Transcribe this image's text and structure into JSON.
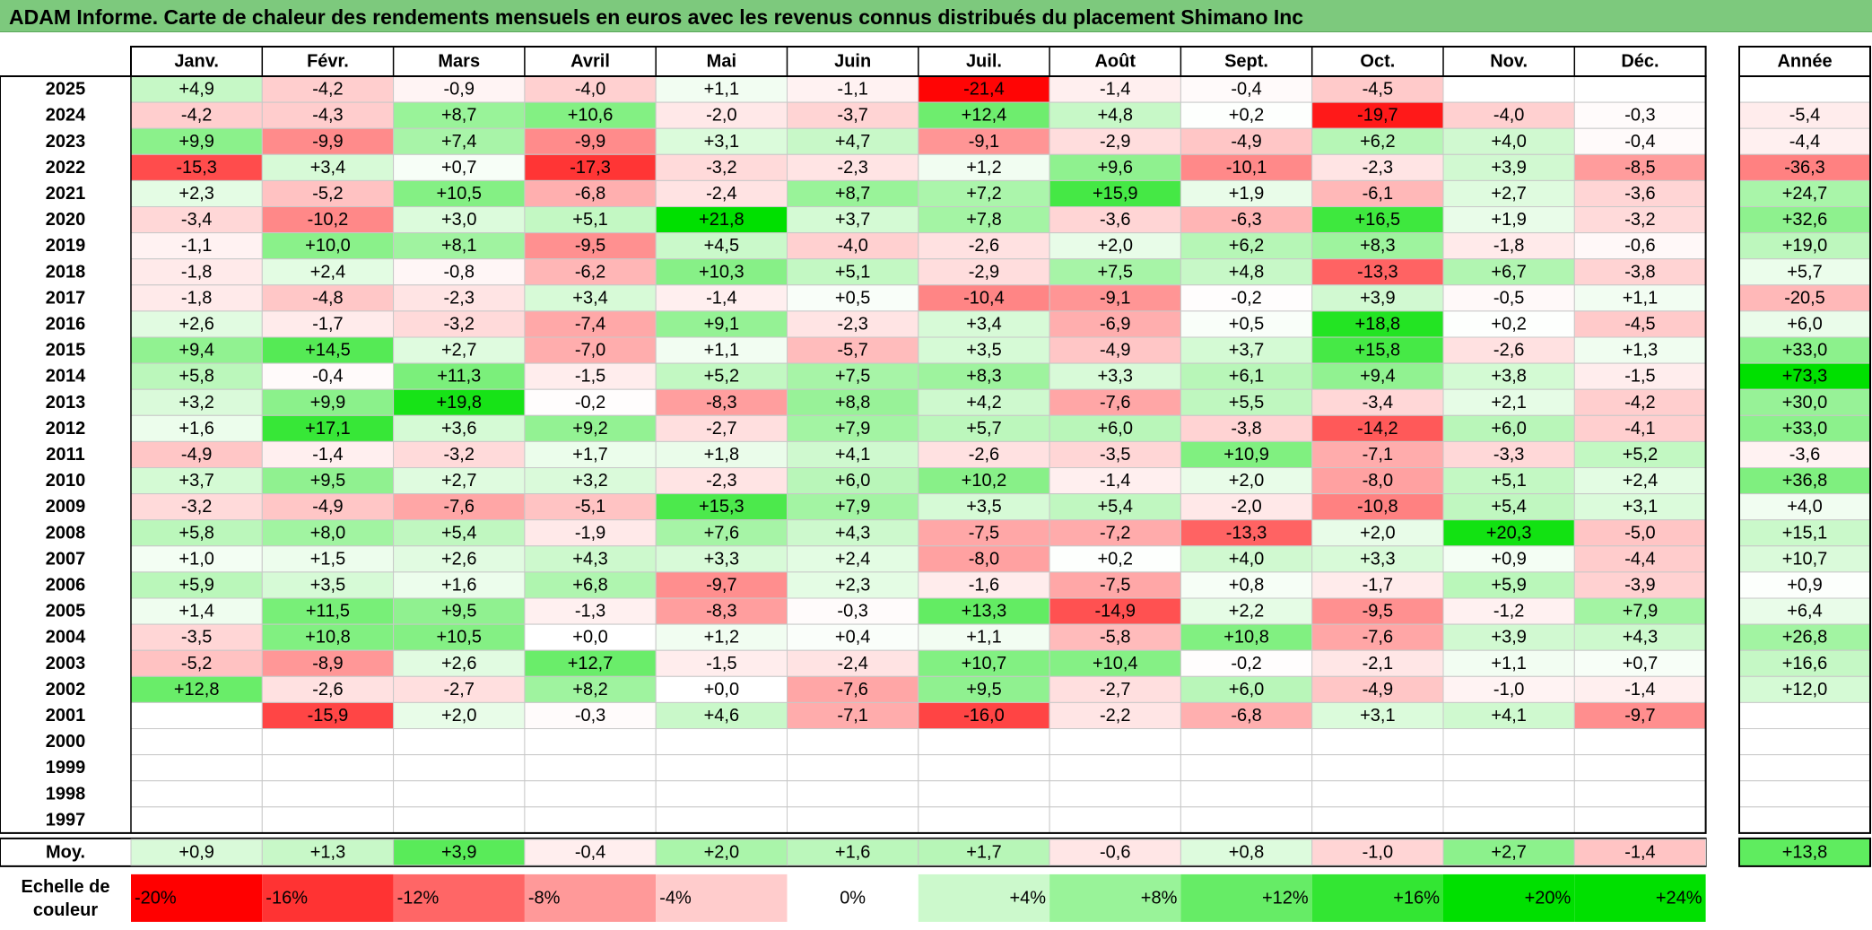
{
  "title": "ADAM Informe. Carte de chaleur des rendements mensuels en euros avec les revenus connus distribués du placement Shimano Inc",
  "chart_data": {
    "type": "heatmap",
    "months": [
      "Janv.",
      "Févr.",
      "Mars",
      "Avril",
      "Mai",
      "Juin",
      "Juil.",
      "Août",
      "Sept.",
      "Oct.",
      "Nov.",
      "Déc."
    ],
    "year_header": "Année",
    "rows": [
      {
        "year": "2025",
        "values": [
          4.9,
          -4.2,
          -0.9,
          -4.0,
          1.1,
          -1.1,
          -21.4,
          -1.4,
          -0.4,
          -4.5,
          null,
          null
        ],
        "annual": null
      },
      {
        "year": "2024",
        "values": [
          -4.2,
          -4.3,
          8.7,
          10.6,
          -2.0,
          -3.7,
          12.4,
          4.8,
          0.2,
          -19.7,
          -4.0,
          -0.3
        ],
        "annual": -5.4
      },
      {
        "year": "2023",
        "values": [
          9.9,
          -9.9,
          7.4,
          -9.9,
          3.1,
          4.7,
          -9.1,
          -2.9,
          -4.9,
          6.2,
          4.0,
          -0.4
        ],
        "annual": -4.4
      },
      {
        "year": "2022",
        "values": [
          -15.3,
          3.4,
          0.7,
          -17.3,
          -3.2,
          -2.3,
          1.2,
          9.6,
          -10.1,
          -2.3,
          3.9,
          -8.5
        ],
        "annual": -36.3
      },
      {
        "year": "2021",
        "values": [
          2.3,
          -5.2,
          10.5,
          -6.8,
          -2.4,
          8.7,
          7.2,
          15.9,
          1.9,
          -6.1,
          2.7,
          -3.6
        ],
        "annual": 24.7
      },
      {
        "year": "2020",
        "values": [
          -3.4,
          -10.2,
          3.0,
          5.1,
          21.8,
          3.7,
          7.8,
          -3.6,
          -6.3,
          16.5,
          1.9,
          -3.2
        ],
        "annual": 32.6
      },
      {
        "year": "2019",
        "values": [
          -1.1,
          10.0,
          8.1,
          -9.5,
          4.5,
          -4.0,
          -2.6,
          2.0,
          6.2,
          8.3,
          -1.8,
          -0.6
        ],
        "annual": 19.0
      },
      {
        "year": "2018",
        "values": [
          -1.8,
          2.4,
          -0.8,
          -6.2,
          10.3,
          5.1,
          -2.9,
          7.5,
          4.8,
          -13.3,
          6.7,
          -3.8
        ],
        "annual": 5.7
      },
      {
        "year": "2017",
        "values": [
          -1.8,
          -4.8,
          -2.3,
          3.4,
          -1.4,
          0.5,
          -10.4,
          -9.1,
          -0.2,
          3.9,
          -0.5,
          1.1
        ],
        "annual": -20.5
      },
      {
        "year": "2016",
        "values": [
          2.6,
          -1.7,
          -3.2,
          -7.4,
          9.1,
          -2.3,
          3.4,
          -6.9,
          0.5,
          18.8,
          0.2,
          -4.5
        ],
        "annual": 6.0
      },
      {
        "year": "2015",
        "values": [
          9.4,
          14.5,
          2.7,
          -7.0,
          1.1,
          -5.7,
          3.5,
          -4.9,
          3.7,
          15.8,
          -2.6,
          1.3
        ],
        "annual": 33.0
      },
      {
        "year": "2014",
        "values": [
          5.8,
          -0.4,
          11.3,
          -1.5,
          5.2,
          7.5,
          8.3,
          3.3,
          6.1,
          9.4,
          3.8,
          -1.5
        ],
        "annual": 73.3
      },
      {
        "year": "2013",
        "values": [
          3.2,
          9.9,
          19.8,
          -0.2,
          -8.3,
          8.8,
          4.2,
          -7.6,
          5.5,
          -3.4,
          2.1,
          -4.2
        ],
        "annual": 30.0
      },
      {
        "year": "2012",
        "values": [
          1.6,
          17.1,
          3.6,
          9.2,
          -2.7,
          7.9,
          5.7,
          6.0,
          -3.8,
          -14.2,
          6.0,
          -4.1
        ],
        "annual": 33.0
      },
      {
        "year": "2011",
        "values": [
          -4.9,
          -1.4,
          -3.2,
          1.7,
          1.8,
          4.1,
          -2.6,
          -3.5,
          10.9,
          -7.1,
          -3.3,
          5.2
        ],
        "annual": -3.6
      },
      {
        "year": "2010",
        "values": [
          3.7,
          9.5,
          2.7,
          3.2,
          -2.3,
          6.0,
          10.2,
          -1.4,
          2.0,
          -8.0,
          5.1,
          2.4
        ],
        "annual": 36.8
      },
      {
        "year": "2009",
        "values": [
          -3.2,
          -4.9,
          -7.6,
          -5.1,
          15.3,
          7.9,
          3.5,
          5.4,
          -2.0,
          -10.8,
          5.4,
          3.1
        ],
        "annual": 4.0
      },
      {
        "year": "2008",
        "values": [
          5.8,
          8.0,
          5.4,
          -1.9,
          7.6,
          4.3,
          -7.5,
          -7.2,
          -13.3,
          2.0,
          20.3,
          -5.0
        ],
        "annual": 15.1
      },
      {
        "year": "2007",
        "values": [
          1.0,
          1.5,
          2.6,
          4.3,
          3.3,
          2.4,
          -8.0,
          0.2,
          4.0,
          3.3,
          0.9,
          -4.4
        ],
        "annual": 10.7
      },
      {
        "year": "2006",
        "values": [
          5.9,
          3.5,
          1.6,
          6.8,
          -9.7,
          2.3,
          -1.6,
          -7.5,
          0.8,
          -1.7,
          5.9,
          -3.9
        ],
        "annual": 0.9
      },
      {
        "year": "2005",
        "values": [
          1.4,
          11.5,
          9.5,
          -1.3,
          -8.3,
          -0.3,
          13.3,
          -14.9,
          2.2,
          -9.5,
          -1.2,
          7.9
        ],
        "annual": 6.4
      },
      {
        "year": "2004",
        "values": [
          -3.5,
          10.8,
          10.5,
          0.0,
          1.2,
          0.4,
          1.1,
          -5.8,
          10.8,
          -7.6,
          3.9,
          4.3
        ],
        "annual": 26.8
      },
      {
        "year": "2003",
        "values": [
          -5.2,
          -8.9,
          2.6,
          12.7,
          -1.5,
          -2.4,
          10.7,
          10.4,
          -0.2,
          -2.1,
          1.1,
          0.7
        ],
        "annual": 16.6
      },
      {
        "year": "2002",
        "values": [
          12.8,
          -2.6,
          -2.7,
          8.2,
          0.0,
          -7.6,
          9.5,
          -2.7,
          6.0,
          -4.9,
          -1.0,
          -1.4
        ],
        "annual": 12.0
      },
      {
        "year": "2001",
        "values": [
          null,
          -15.9,
          2.0,
          -0.3,
          4.6,
          -7.1,
          -16.0,
          -2.2,
          -6.8,
          3.1,
          4.1,
          -9.7
        ],
        "annual": null
      },
      {
        "year": "2000",
        "values": [
          null,
          null,
          null,
          null,
          null,
          null,
          null,
          null,
          null,
          null,
          null,
          null
        ],
        "annual": null
      },
      {
        "year": "1999",
        "values": [
          null,
          null,
          null,
          null,
          null,
          null,
          null,
          null,
          null,
          null,
          null,
          null
        ],
        "annual": null
      },
      {
        "year": "1998",
        "values": [
          null,
          null,
          null,
          null,
          null,
          null,
          null,
          null,
          null,
          null,
          null,
          null
        ],
        "annual": null
      },
      {
        "year": "1997",
        "values": [
          null,
          null,
          null,
          null,
          null,
          null,
          null,
          null,
          null,
          null,
          null,
          null
        ],
        "annual": null
      }
    ],
    "average": {
      "label": "Moy.",
      "values": [
        0.9,
        1.3,
        3.9,
        -0.4,
        2.0,
        1.6,
        1.7,
        -0.6,
        0.8,
        -1.0,
        2.7,
        -1.4
      ],
      "annual": 13.8
    },
    "scale": {
      "label_line1": "Echelle de",
      "label_line2": "couleur",
      "stops": [
        "-20%",
        "-16%",
        "-12%",
        "-8%",
        "-4%",
        "0%",
        "+4%",
        "+8%",
        "+12%",
        "+16%",
        "+20%",
        "+24%"
      ],
      "stop_values": [
        -20,
        -16,
        -12,
        -8,
        -4,
        0,
        4,
        8,
        12,
        16,
        20,
        24
      ]
    },
    "colors": {
      "negative_max": "#ff0000",
      "neutral": "#ffffff",
      "positive_max": "#00e000",
      "title_bar": "#7dc97d"
    }
  }
}
